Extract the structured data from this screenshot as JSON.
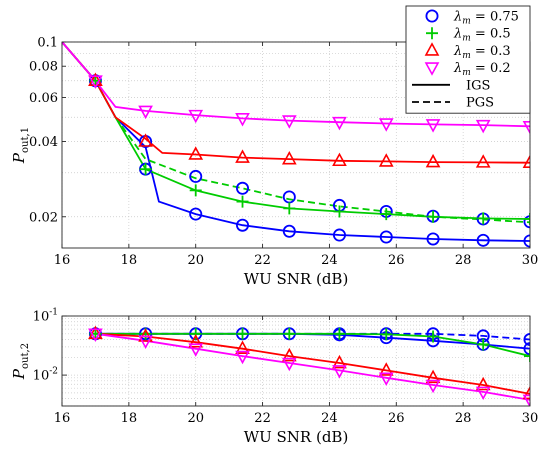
{
  "chart_data": [
    {
      "type": "line",
      "xlabel": "WU SNR (dB)",
      "ylabel": {
        "base": "P",
        "sub": "out,1"
      },
      "xlim": [
        16,
        30
      ],
      "ylim": [
        0.015,
        0.1
      ],
      "yscale": "log",
      "grid": "dotted",
      "legend_placement": "top-right",
      "xticks": [
        16,
        18,
        20,
        22,
        24,
        26,
        28,
        30
      ],
      "yticks": [
        0.02,
        0.04,
        0.06,
        0.08,
        0.1
      ],
      "ytick_labels": [
        "0.02",
        "0.04",
        "0.06",
        "0.08",
        "0.1"
      ],
      "legend": [
        {
          "lambda_value": "0.75",
          "marker": "circle",
          "color": "#0000ff"
        },
        {
          "lambda_value": "0.5",
          "marker": "plus",
          "color": "#00cc00"
        },
        {
          "lambda_value": "0.3",
          "marker": "triangle-up",
          "color": "#ff0000"
        },
        {
          "lambda_value": "0.2",
          "marker": "triangle-down",
          "color": "#ff00ff"
        },
        {
          "line_style": "solid",
          "label": "IGS",
          "color": "#000000"
        },
        {
          "line_style": "dashed",
          "label": "PGS",
          "color": "#000000"
        }
      ],
      "series": [
        {
          "color": "#0000ff",
          "style": "solid",
          "x": [
            16,
            17,
            17.6,
            18.5,
            18.9,
            20,
            21.4,
            22.8,
            24.3,
            25.7,
            27.1,
            28.6,
            30
          ],
          "y": [
            0.1,
            0.07,
            0.05,
            0.038,
            0.023,
            0.0205,
            0.0185,
            0.0175,
            0.0169,
            0.0166,
            0.0163,
            0.0161,
            0.016
          ]
        },
        {
          "color": "#00cc00",
          "style": "solid",
          "x": [
            16,
            17,
            17.6,
            18.5,
            20,
            21.4,
            22.8,
            24.3,
            25.7,
            27.1,
            28.6,
            30
          ],
          "y": [
            0.1,
            0.07,
            0.05,
            0.031,
            0.0255,
            0.023,
            0.0216,
            0.021,
            0.0205,
            0.02,
            0.0197,
            0.0196
          ]
        },
        {
          "color": "#00cc00",
          "style": "dashed",
          "x": [
            17.6,
            18.5,
            20,
            21.4,
            22.8,
            24.3,
            25.7,
            27.1,
            28.6,
            30
          ],
          "y": [
            0.05,
            0.034,
            0.0285,
            0.026,
            0.0235,
            0.022,
            0.021,
            0.02,
            0.0195,
            0.019
          ]
        },
        {
          "color": "#ff0000",
          "style": "solid",
          "x": [
            16,
            17,
            17.6,
            18.5,
            19,
            20,
            21.4,
            22.8,
            24.3,
            25.7,
            27.1,
            28.6,
            30
          ],
          "y": [
            0.1,
            0.07,
            0.05,
            0.041,
            0.036,
            0.0355,
            0.0345,
            0.034,
            0.0335,
            0.0333,
            0.0331,
            0.033,
            0.0329
          ]
        },
        {
          "color": "#ff00ff",
          "style": "solid",
          "x": [
            16,
            17,
            17.6,
            18.5,
            20,
            21.4,
            22.8,
            24.3,
            25.7,
            27.1,
            28.6,
            30
          ],
          "y": [
            0.1,
            0.07,
            0.055,
            0.053,
            0.051,
            0.0495,
            0.0485,
            0.0478,
            0.0472,
            0.0468,
            0.0465,
            0.046
          ]
        }
      ],
      "markers": [
        {
          "series_color": "#0000ff",
          "marker": "circle",
          "x": [
            17,
            18.5,
            20,
            21.4,
            22.8,
            24.3,
            25.7,
            27.1,
            28.6,
            30
          ],
          "y": [
            0.07,
            0.031,
            0.029,
            0.026,
            0.024,
            0.0222,
            0.021,
            0.0201,
            0.0196,
            0.0191
          ]
        },
        {
          "series_color": "#0000ff",
          "marker": "circle",
          "x": [
            18.5,
            20,
            21.4,
            22.8,
            24.3,
            25.7,
            27.1,
            28.6,
            30
          ],
          "y": [
            0.04,
            0.0205,
            0.0185,
            0.0175,
            0.0169,
            0.0166,
            0.0163,
            0.0161,
            0.016
          ]
        },
        {
          "series_color": "#00cc00",
          "marker": "plus",
          "x": [
            17,
            18.5,
            20,
            21.4,
            22.8,
            24.3,
            25.7,
            27.1,
            28.6,
            30
          ],
          "y": [
            0.07,
            0.031,
            0.0255,
            0.023,
            0.0216,
            0.021,
            0.0205,
            0.02,
            0.0197,
            0.0196
          ]
        },
        {
          "series_color": "#ff0000",
          "marker": "triangle-up",
          "x": [
            17,
            18.5,
            20,
            21.4,
            22.8,
            24.3,
            25.7,
            27.1,
            28.6,
            30
          ],
          "y": [
            0.07,
            0.04,
            0.0355,
            0.0345,
            0.034,
            0.0335,
            0.0333,
            0.0331,
            0.033,
            0.0329
          ]
        },
        {
          "series_color": "#ff00ff",
          "marker": "triangle-down",
          "x": [
            17,
            18.5,
            20,
            21.4,
            22.8,
            24.3,
            25.7,
            27.1,
            28.6,
            30
          ],
          "y": [
            0.07,
            0.053,
            0.051,
            0.0495,
            0.0485,
            0.0478,
            0.0472,
            0.0468,
            0.0465,
            0.046
          ]
        }
      ]
    },
    {
      "type": "line",
      "xlabel": "WU SNR (dB)",
      "ylabel": {
        "base": "P",
        "sub": "out,2"
      },
      "xlim": [
        16,
        30
      ],
      "ylim": [
        0.003,
        0.1
      ],
      "yscale": "log",
      "grid": "dotted",
      "xticks": [
        16,
        18,
        20,
        22,
        24,
        26,
        28,
        30
      ],
      "ytick_labels": [
        {
          "value": 0.1,
          "base": "10",
          "exp": "-1"
        },
        {
          "value": 0.01,
          "base": "10",
          "exp": "-2"
        }
      ],
      "series": [
        {
          "color": "#0000ff",
          "style": "solid",
          "x": [
            17,
            18.5,
            20,
            21.4,
            22.8,
            24.3,
            25.7,
            27.1,
            28.6,
            30
          ],
          "y": [
            0.05,
            0.05,
            0.05,
            0.05,
            0.05,
            0.048,
            0.043,
            0.038,
            0.033,
            0.028
          ]
        },
        {
          "color": "#0000ff",
          "style": "dashed",
          "x": [
            17,
            18.5,
            20,
            21.4,
            22.8,
            24.3,
            25.7,
            27.1,
            28.6,
            30
          ],
          "y": [
            0.05,
            0.05,
            0.05,
            0.05,
            0.05,
            0.05,
            0.05,
            0.05,
            0.046,
            0.04
          ]
        },
        {
          "color": "#00cc00",
          "style": "solid",
          "x": [
            17,
            18.5,
            20,
            21.4,
            22.8,
            24.3,
            25.7,
            27.1,
            28.6,
            30
          ],
          "y": [
            0.05,
            0.05,
            0.05,
            0.05,
            0.05,
            0.05,
            0.049,
            0.045,
            0.033,
            0.021
          ]
        },
        {
          "color": "#ff0000",
          "style": "solid",
          "x": [
            17,
            18.5,
            20,
            21.4,
            22.8,
            24.3,
            25.7,
            27.1,
            28.6,
            30
          ],
          "y": [
            0.05,
            0.045,
            0.036,
            0.028,
            0.021,
            0.016,
            0.012,
            0.009,
            0.0068,
            0.0048
          ]
        },
        {
          "color": "#ff00ff",
          "style": "solid",
          "x": [
            17,
            18.5,
            20,
            21.4,
            22.8,
            24.3,
            25.7,
            27.1,
            28.6,
            30
          ],
          "y": [
            0.05,
            0.038,
            0.028,
            0.021,
            0.016,
            0.012,
            0.009,
            0.0068,
            0.0052,
            0.0038
          ]
        }
      ],
      "markers": [
        {
          "series_color": "#0000ff",
          "marker": "circle",
          "x": [
            17,
            18.5,
            20,
            21.4,
            22.8,
            24.3,
            25.7,
            27.1,
            28.6,
            30
          ],
          "y": [
            0.05,
            0.05,
            0.05,
            0.05,
            0.05,
            0.048,
            0.043,
            0.038,
            0.033,
            0.028
          ]
        },
        {
          "series_color": "#0000ff",
          "marker": "circle",
          "x": [
            24.3,
            25.7,
            27.1,
            28.6,
            30
          ],
          "y": [
            0.05,
            0.05,
            0.05,
            0.046,
            0.04
          ]
        },
        {
          "series_color": "#00cc00",
          "marker": "plus",
          "x": [
            17,
            18.5,
            20,
            21.4,
            22.8,
            24.3,
            25.7,
            27.1,
            28.6,
            30
          ],
          "y": [
            0.05,
            0.05,
            0.05,
            0.05,
            0.05,
            0.05,
            0.049,
            0.045,
            0.033,
            0.021
          ]
        },
        {
          "series_color": "#ff0000",
          "marker": "triangle-up",
          "x": [
            17,
            18.5,
            20,
            21.4,
            22.8,
            24.3,
            25.7,
            27.1,
            28.6,
            30
          ],
          "y": [
            0.05,
            0.045,
            0.036,
            0.028,
            0.021,
            0.016,
            0.012,
            0.009,
            0.0068,
            0.0048
          ]
        },
        {
          "series_color": "#ff00ff",
          "marker": "triangle-down",
          "x": [
            17,
            18.5,
            20,
            21.4,
            22.8,
            24.3,
            25.7,
            27.1,
            28.6,
            30
          ],
          "y": [
            0.05,
            0.038,
            0.028,
            0.021,
            0.016,
            0.012,
            0.009,
            0.0068,
            0.0052,
            0.0038
          ]
        }
      ]
    }
  ]
}
